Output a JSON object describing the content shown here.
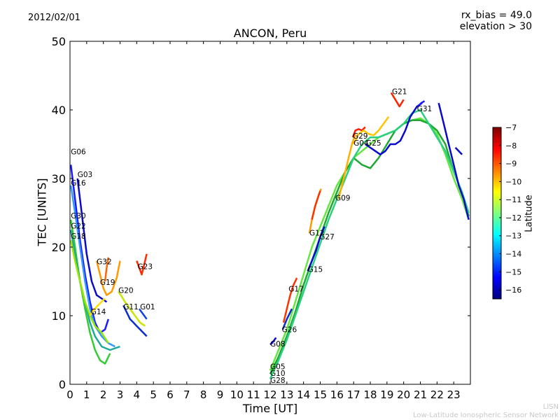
{
  "header": {
    "date": "2012/02/01",
    "rx_bias": "rx_bias = 49.0",
    "elevation": "elevation > 30"
  },
  "footer": {
    "credit_short": "LISN",
    "credit_long": "Low-Latitude Ionospheric Sensor Network"
  },
  "chart_data": {
    "type": "line",
    "title": "ANCON, Peru",
    "xlabel": "Time [UT]",
    "ylabel": "TEC [UNITS]",
    "xlim": [
      0,
      24
    ],
    "ylim": [
      0,
      50
    ],
    "xticks": [
      0,
      1,
      2,
      3,
      4,
      5,
      6,
      7,
      8,
      9,
      10,
      11,
      12,
      13,
      14,
      15,
      16,
      17,
      18,
      19,
      20,
      21,
      22,
      23
    ],
    "yticks": [
      0,
      10,
      20,
      30,
      40,
      50
    ],
    "grid": false,
    "colorbar": {
      "label": "Latitude",
      "range": [
        -16.5,
        -7
      ],
      "ticks": [
        -7,
        -8,
        -9,
        -10,
        -11,
        -12,
        -13,
        -14,
        -15,
        -16
      ],
      "colormap": [
        "#00007f",
        "#0000ff",
        "#007fff",
        "#00ffff",
        "#7fff7f",
        "#ffff00",
        "#ff7f00",
        "#ff0000",
        "#7f0000"
      ]
    },
    "series": [
      {
        "name": "G06",
        "label_at": [
          0.05,
          33.5
        ],
        "color": "#1a1aff",
        "x": [
          0.05,
          0.3,
          0.6,
          0.9,
          1.2,
          1.5,
          1.8,
          2.1,
          2.3
        ],
        "y": [
          32,
          27,
          21,
          16,
          12,
          9,
          7.5,
          8,
          9.5
        ]
      },
      {
        "name": "G03",
        "label_at": [
          0.45,
          30.2
        ],
        "color": "#0a0acc",
        "x": [
          0.45,
          0.7,
          1.0,
          1.3,
          1.6,
          1.9,
          2.2
        ],
        "y": [
          30,
          25,
          19,
          15,
          13,
          12.5,
          12
        ]
      },
      {
        "name": "G16",
        "label_at": [
          0.05,
          29
        ],
        "color": "#3399ff",
        "x": [
          0.05,
          0.3,
          0.6,
          0.9,
          1.2,
          1.5,
          1.9,
          2.3,
          2.7
        ],
        "y": [
          29,
          25,
          20,
          15,
          11,
          8.5,
          7,
          6,
          5.5
        ]
      },
      {
        "name": "G30",
        "label_at": [
          0.05,
          24.2
        ],
        "color": "#33cc33",
        "x": [
          0.05,
          0.3,
          0.6,
          0.9,
          1.2,
          1.5,
          1.8,
          2.1,
          2.4
        ],
        "y": [
          24,
          20,
          15,
          11,
          7.5,
          5,
          3.5,
          3,
          4.5
        ]
      },
      {
        "name": "G22",
        "label_at": [
          0.05,
          22.7
        ],
        "color": "#20a8a0",
        "x": [
          0.05,
          0.3,
          0.6,
          0.9,
          1.2,
          1.5,
          1.9,
          2.4,
          3.0
        ],
        "y": [
          22.5,
          19,
          15,
          12,
          9,
          7,
          5.5,
          5,
          5.5
        ]
      },
      {
        "name": "G18",
        "label_at": [
          0.05,
          21.2
        ],
        "color": "#99e600",
        "x": [
          0.05,
          0.3,
          0.6,
          0.9,
          1.2,
          1.5,
          1.9,
          2.3
        ],
        "y": [
          21,
          18,
          15,
          12,
          10,
          8.5,
          7.5,
          6
        ]
      },
      {
        "name": "G14",
        "label_at": [
          1.25,
          10.2
        ],
        "color": "#ffe000",
        "x": [
          1.2,
          1.4,
          1.6,
          1.8,
          2.0,
          2.1
        ],
        "y": [
          10,
          10.8,
          11.3,
          11.8,
          12.3,
          12.5
        ]
      },
      {
        "name": "G32",
        "label_at": [
          1.6,
          17.5
        ],
        "color": "#ff9900",
        "x": [
          1.6,
          1.8,
          2.0,
          2.2,
          2.5,
          2.8,
          3.0
        ],
        "y": [
          18,
          16,
          14,
          13,
          13.5,
          15.5,
          18
        ]
      },
      {
        "name": "G19",
        "label_at": [
          1.8,
          14.5
        ],
        "color": "#ff6600",
        "x": [
          2.1,
          2.2,
          2.3
        ],
        "y": [
          15,
          17,
          18.5
        ]
      },
      {
        "name": "G20",
        "label_at": [
          2.9,
          13.3
        ],
        "color": "#c8e600",
        "x": [
          2.9,
          3.1,
          3.3,
          3.6,
          3.9,
          4.2,
          4.5
        ],
        "y": [
          13.5,
          12.8,
          12,
          11,
          10,
          9,
          8.5
        ]
      },
      {
        "name": "G11",
        "label_at": [
          3.2,
          10.9
        ],
        "color": "#0a2dd0",
        "x": [
          3.2,
          3.4,
          3.6,
          3.8,
          4.0,
          4.2,
          4.4,
          4.6
        ],
        "y": [
          11.5,
          10.5,
          9.5,
          9,
          8.5,
          8,
          7.5,
          7
        ]
      },
      {
        "name": "G01",
        "label_at": [
          4.2,
          10.9
        ],
        "color": "#1040e0",
        "x": [
          4.15,
          4.3,
          4.45,
          4.6
        ],
        "y": [
          11,
          10.5,
          10,
          9.5
        ]
      },
      {
        "name": "G23",
        "label_at": [
          4.05,
          16.8
        ],
        "color": "#ff2a00",
        "x": [
          4.0,
          4.15,
          4.3,
          4.45,
          4.6
        ],
        "y": [
          18,
          17,
          16,
          17.5,
          19
        ]
      },
      {
        "name": "G08",
        "label_at": [
          12.0,
          5.5
        ],
        "color": "#0a0acc",
        "x": [
          12.0,
          12.1,
          12.2,
          12.35
        ],
        "y": [
          5.8,
          6.0,
          6.3,
          6.8
        ]
      },
      {
        "name": "G05",
        "label_at": [
          12.0,
          2.2
        ],
        "color": "#66e640",
        "x": [
          12.0,
          12.5,
          13.0,
          13.5,
          14.0,
          14.5,
          15.0,
          15.5,
          16.0,
          16.5,
          17.0,
          17.5,
          18.0,
          18.5,
          19.0,
          19.5,
          20.0,
          20.5,
          21.0,
          21.5,
          22.0,
          22.5,
          23.0,
          23.5,
          23.9
        ],
        "y": [
          2,
          5,
          8,
          12,
          16,
          20,
          23,
          26,
          29,
          31,
          33,
          34,
          35,
          36,
          36.5,
          37,
          38,
          38.5,
          38.8,
          38,
          36.5,
          33.5,
          30,
          27,
          24
        ]
      },
      {
        "name": "G10",
        "label_at": [
          12.0,
          1.2
        ],
        "color": "#1fa830",
        "x": [
          12.0,
          12.5,
          13.0,
          13.5,
          14.0,
          14.5,
          15.0,
          15.5,
          16.0,
          16.5,
          17.0,
          17.5,
          18.0,
          18.5,
          19.0,
          19.5,
          20.0,
          20.5,
          21.0,
          21.5,
          22.0,
          22.5,
          23.0,
          23.5,
          23.9
        ],
        "y": [
          1.5,
          4,
          7,
          10.5,
          14.5,
          18,
          21.5,
          25,
          28,
          31,
          33,
          32,
          31.5,
          33,
          35,
          37,
          38,
          38.5,
          38.5,
          38,
          37,
          35,
          31,
          28,
          24.5
        ]
      },
      {
        "name": "G28",
        "label_at": [
          12.0,
          0.2
        ],
        "color": "#2ad080",
        "x": [
          12.0,
          12.5,
          13.0,
          13.5,
          14.0,
          14.5,
          15.0,
          15.5,
          16.0,
          16.5,
          17.0,
          17.5,
          18.0,
          18.5,
          19.0,
          19.5,
          20.0,
          20.5,
          21.0,
          21.5,
          22.0,
          22.5,
          23.0,
          23.5,
          23.9
        ],
        "y": [
          0.8,
          3.5,
          6.5,
          10,
          13.5,
          17,
          20.5,
          24,
          27,
          30,
          33,
          35,
          36,
          36,
          36.5,
          37,
          38,
          39.5,
          40,
          38,
          36,
          34,
          31,
          28,
          25
        ]
      },
      {
        "name": "G26",
        "label_at": [
          12.7,
          7.6
        ],
        "color": "#0a2dd0",
        "x": [
          12.75,
          13.0,
          13.3
        ],
        "y": [
          8,
          9.5,
          11
        ]
      },
      {
        "name": "G17",
        "label_at": [
          13.1,
          13.5
        ],
        "color": "#ff3300",
        "x": [
          12.8,
          13.0,
          13.2,
          13.4,
          13.6
        ],
        "y": [
          9,
          11,
          13,
          14.5,
          15.5
        ]
      },
      {
        "name": "G15",
        "label_at": [
          14.25,
          16.4
        ],
        "color": "#0a0acc",
        "x": [
          14.25,
          14.5,
          14.75,
          15.0,
          15.25
        ],
        "y": [
          16.5,
          18,
          19.5,
          21.5,
          23
        ]
      },
      {
        "name": "G12",
        "label_at": [
          14.35,
          21.7
        ],
        "color": "#ff9900",
        "x": [
          14.35,
          14.5,
          14.7,
          14.9,
          15.05
        ],
        "y": [
          22,
          24,
          26,
          27.5,
          28.5
        ]
      },
      {
        "name": "G27",
        "label_at": [
          14.95,
          21.1
        ],
        "color": "#ff3300",
        "x": [
          14.5,
          14.7,
          14.9,
          15.0
        ],
        "y": [
          24,
          26,
          27.5,
          28.2
        ]
      },
      {
        "name": "G09",
        "label_at": [
          15.9,
          26.8
        ],
        "color": "#ffb000",
        "x": [
          16.1,
          16.3,
          16.5,
          16.7,
          16.9,
          17.1
        ],
        "y": [
          27,
          29,
          31,
          33,
          35,
          36.5
        ]
      },
      {
        "name": "G29",
        "label_at": [
          16.95,
          35.8
        ],
        "color": "#ff1a00",
        "x": [
          16.95,
          17.1,
          17.3,
          17.5,
          17.7
        ],
        "y": [
          36,
          37,
          37.2,
          37,
          37.5
        ]
      },
      {
        "name": "G04",
        "label_at": [
          17.0,
          34.8
        ],
        "color": "#ffc400",
        "x": [
          17.0,
          17.3,
          17.6,
          17.9,
          18.2,
          18.5,
          18.8,
          19.1
        ],
        "y": [
          35,
          36.5,
          37,
          36.5,
          36.3,
          37,
          38,
          39
        ]
      },
      {
        "name": "G25",
        "label_at": [
          17.75,
          34.8
        ],
        "color": "#0a0acc",
        "x": [
          17.7,
          18.0,
          18.3,
          18.6,
          18.9,
          19.2,
          19.5,
          19.8,
          20.1,
          20.4,
          20.8,
          21.1
        ],
        "y": [
          35,
          34.5,
          34,
          33.5,
          34,
          35,
          35,
          35.5,
          37,
          39,
          40.5,
          41
        ]
      },
      {
        "name": "G21",
        "label_at": [
          19.3,
          42.3
        ],
        "color": "#ff2200",
        "x": [
          19.25,
          19.5,
          19.75,
          20.0
        ],
        "y": [
          42.5,
          41.5,
          40.5,
          41.5
        ]
      },
      {
        "name": "G31",
        "label_at": [
          20.8,
          39.8
        ],
        "color": "#1a1aff",
        "x": [
          20.85,
          21.05,
          21.25
        ],
        "y": [
          40.5,
          41,
          41.3
        ]
      },
      {
        "name": "",
        "label_at": null,
        "color": "#0a0acc",
        "x": [
          22.1,
          22.4,
          22.7,
          23.0,
          23.3,
          23.6,
          23.9
        ],
        "y": [
          41,
          38,
          35,
          32,
          29,
          27,
          24
        ]
      },
      {
        "name": "",
        "label_at": null,
        "color": "#0a0acc",
        "x": [
          23.1,
          23.3,
          23.5
        ],
        "y": [
          34.5,
          34,
          33.5
        ]
      }
    ]
  }
}
